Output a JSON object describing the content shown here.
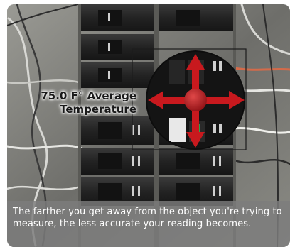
{
  "overlay": {
    "reading_line1": "75.0 F° Average",
    "reading_line2": "Temperature"
  },
  "caption": {
    "text": "The farther you get away from the object you're trying to measure, the less accurate your reading becomes."
  },
  "colors": {
    "arrow": "#c8191e",
    "spot_ring": "#111111",
    "caption_bg": "#7d7d7d"
  },
  "icons": {
    "center": "target-dot-icon",
    "arrows": [
      "arrow-up-icon",
      "arrow-down-icon",
      "arrow-left-icon",
      "arrow-right-icon"
    ]
  }
}
